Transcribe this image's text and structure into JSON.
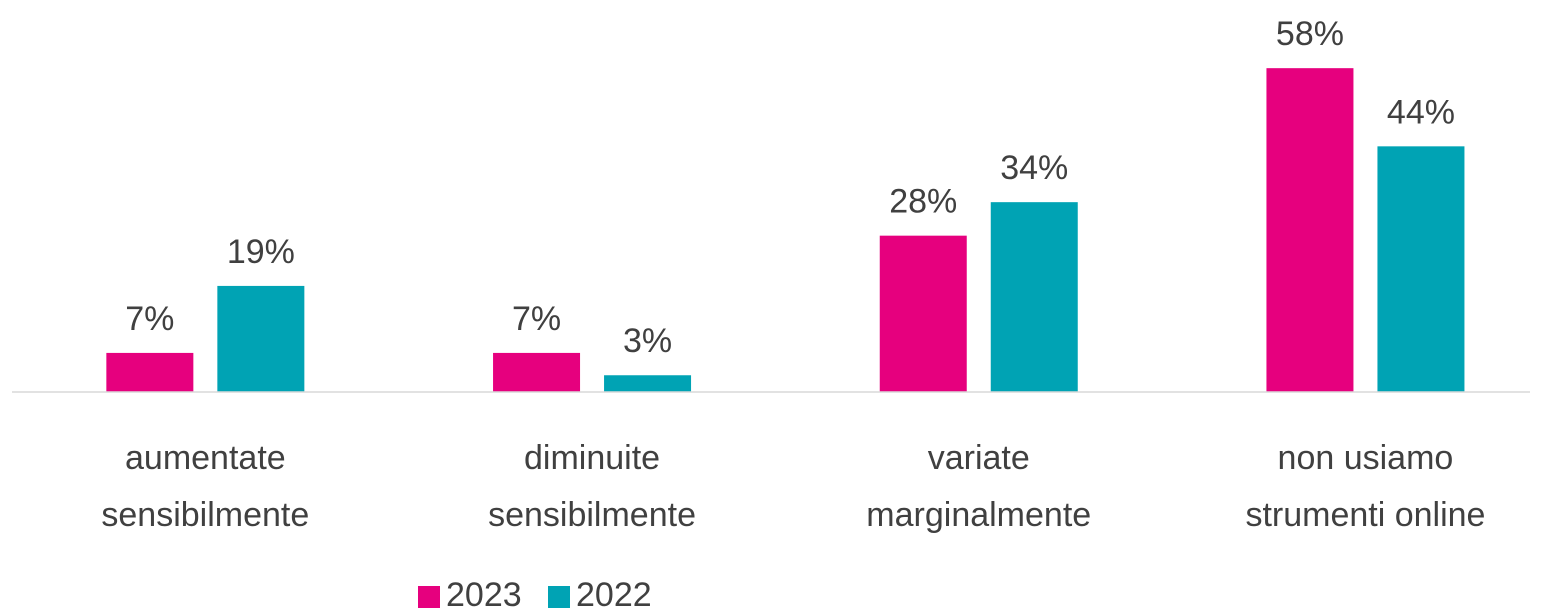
{
  "chart_data": {
    "type": "bar",
    "categories": [
      [
        "aumentate",
        "sensibilmente"
      ],
      [
        "diminuite",
        "sensibilmente"
      ],
      [
        "variate",
        "marginalmente"
      ],
      [
        "non usiamo",
        "strumenti online"
      ]
    ],
    "series": [
      {
        "name": "2023",
        "color": "#e6007e",
        "values": [
          7,
          7,
          28,
          58
        ],
        "value_labels": [
          "7%",
          "7%",
          "28%",
          "58%"
        ]
      },
      {
        "name": "2022",
        "color": "#00a3b4",
        "values": [
          19,
          3,
          34,
          44
        ],
        "value_labels": [
          "19%",
          "3%",
          "34%",
          "44%"
        ]
      }
    ],
    "ylim": [
      0,
      60
    ],
    "legend": "bottom"
  }
}
